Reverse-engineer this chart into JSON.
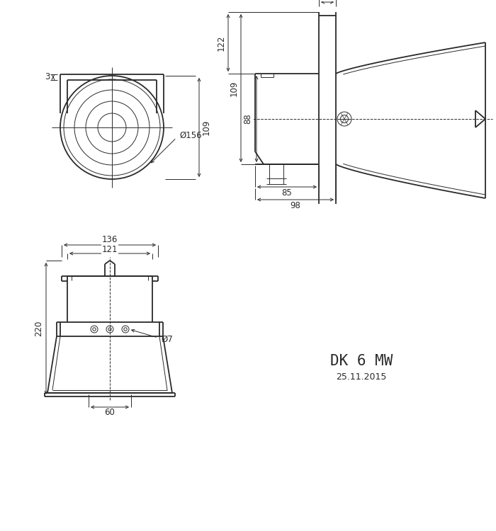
{
  "bg_color": "#ffffff",
  "line_color": "#2a2a2a",
  "dim_color": "#2a2a2a",
  "title": "DK 6 MW",
  "date": "25.11.2015",
  "lw_main": 1.3,
  "lw_thin": 0.7,
  "lw_dim": 0.7,
  "fs_dim": 8.5,
  "fs_title": 15,
  "fs_date": 9
}
